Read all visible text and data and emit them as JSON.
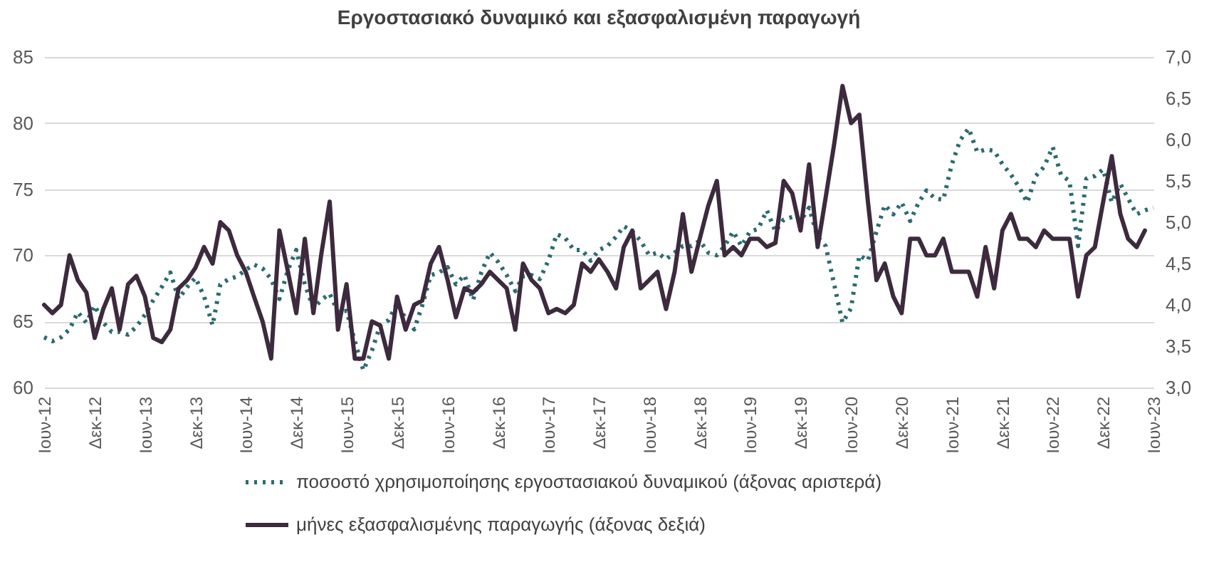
{
  "chart_data": {
    "type": "line",
    "title": "Εργοστασιακό δυναμικό και εξασφαλισμένη παραγωγή",
    "x": [
      "2012-06",
      "2012-07",
      "2012-08",
      "2012-09",
      "2012-10",
      "2012-11",
      "2012-12",
      "2013-01",
      "2013-02",
      "2013-03",
      "2013-04",
      "2013-05",
      "2013-06",
      "2013-07",
      "2013-08",
      "2013-09",
      "2013-10",
      "2013-11",
      "2013-12",
      "2014-01",
      "2014-02",
      "2014-03",
      "2014-04",
      "2014-05",
      "2014-06",
      "2014-07",
      "2014-08",
      "2014-09",
      "2014-10",
      "2014-11",
      "2014-12",
      "2015-01",
      "2015-02",
      "2015-03",
      "2015-04",
      "2015-05",
      "2015-06",
      "2015-07",
      "2015-08",
      "2015-09",
      "2015-10",
      "2015-11",
      "2015-12",
      "2016-01",
      "2016-02",
      "2016-03",
      "2016-04",
      "2016-05",
      "2016-06",
      "2016-07",
      "2016-08",
      "2016-09",
      "2016-10",
      "2016-11",
      "2016-12",
      "2017-01",
      "2017-02",
      "2017-03",
      "2017-04",
      "2017-05",
      "2017-06",
      "2017-07",
      "2017-08",
      "2017-09",
      "2017-10",
      "2017-11",
      "2017-12",
      "2018-01",
      "2018-02",
      "2018-03",
      "2018-04",
      "2018-05",
      "2018-06",
      "2018-07",
      "2018-08",
      "2018-09",
      "2018-10",
      "2018-11",
      "2018-12",
      "2019-01",
      "2019-02",
      "2019-03",
      "2019-04",
      "2019-05",
      "2019-06",
      "2019-07",
      "2019-08",
      "2019-09",
      "2019-10",
      "2019-11",
      "2019-12",
      "2020-01",
      "2020-02",
      "2020-03",
      "2020-04",
      "2020-05",
      "2020-06",
      "2020-07",
      "2020-08",
      "2020-09",
      "2020-10",
      "2020-11",
      "2020-12",
      "2021-01",
      "2021-02",
      "2021-03",
      "2021-04",
      "2021-05",
      "2021-06",
      "2021-07",
      "2021-08",
      "2021-09",
      "2021-10",
      "2021-11",
      "2021-12",
      "2022-01",
      "2022-02",
      "2022-03",
      "2022-04",
      "2022-05",
      "2022-06",
      "2022-07",
      "2022-08",
      "2022-09",
      "2022-10",
      "2022-11",
      "2022-12",
      "2023-01",
      "2023-02",
      "2023-03",
      "2023-04",
      "2023-05",
      "2023-06"
    ],
    "series": [
      {
        "name": "ποσοστό χρησιμοποίησης εργοστασιακού δυναμικού  (άξονας αριστερά)",
        "color": "#2b6b70",
        "line_style": "dotted",
        "values": [
          63.8,
          63.5,
          63.8,
          64.4,
          65.7,
          64.9,
          66.2,
          64.9,
          64.2,
          64.2,
          64.0,
          64.6,
          65.5,
          66.6,
          67.6,
          68.7,
          66.7,
          67.6,
          68.3,
          66.9,
          64.7,
          67.8,
          68.2,
          68.4,
          68.9,
          69.3,
          69.0,
          68.2,
          66.7,
          68.9,
          70.4,
          67.8,
          66.0,
          66.6,
          67.1,
          65.7,
          65.8,
          63.5,
          61.3,
          62.8,
          64.7,
          65.1,
          66.4,
          65.2,
          64.4,
          66.2,
          68.5,
          68.7,
          69.1,
          67.8,
          68.5,
          66.6,
          68.7,
          70.2,
          69.5,
          68.5,
          67.3,
          68.4,
          68.5,
          68.2,
          69.6,
          71.6,
          71.3,
          70.4,
          70.4,
          69.6,
          70.4,
          70.7,
          71.4,
          72.2,
          71.8,
          71.1,
          70.0,
          70.2,
          69.7,
          70.2,
          70.7,
          70.7,
          71.1,
          70.2,
          70.0,
          70.7,
          71.8,
          70.7,
          71.8,
          72.0,
          73.4,
          71.8,
          72.7,
          72.9,
          72.6,
          73.6,
          71.4,
          70.7,
          67.8,
          64.9,
          66.0,
          70.0,
          69.6,
          71.8,
          73.8,
          73.1,
          74.0,
          72.6,
          74.0,
          74.9,
          74.3,
          74.2,
          76.9,
          78.7,
          79.6,
          77.8,
          78.0,
          77.9,
          76.9,
          76.1,
          75.1,
          74.0,
          76.0,
          76.7,
          78.2,
          76.1,
          75.6,
          70.7,
          75.8,
          76.0,
          76.5,
          74.0,
          75.4,
          74.3,
          73.1,
          73.4,
          73.6
        ]
      },
      {
        "name": "μήνες εξασφαλισμένης παραγωγής (άξονας δεξιά)",
        "color": "#3d2a3e",
        "line_style": "solid",
        "axis": "y2",
        "values": [
          4.0,
          3.9,
          4.0,
          4.6,
          4.3,
          4.15,
          3.6,
          3.95,
          4.2,
          3.7,
          4.25,
          4.35,
          4.1,
          3.6,
          3.55,
          3.7,
          4.2,
          4.3,
          4.45,
          4.7,
          4.5,
          5.0,
          4.9,
          4.6,
          4.4,
          4.1,
          3.8,
          3.35,
          4.9,
          4.4,
          3.9,
          4.8,
          3.9,
          4.6,
          5.25,
          3.7,
          4.25,
          3.35,
          3.35,
          3.8,
          3.75,
          3.35,
          4.1,
          3.7,
          4.0,
          4.05,
          4.5,
          4.7,
          4.3,
          3.85,
          4.2,
          4.15,
          4.25,
          4.4,
          4.3,
          4.2,
          3.7,
          4.5,
          4.3,
          4.2,
          3.9,
          3.95,
          3.9,
          4.0,
          4.5,
          4.4,
          4.55,
          4.4,
          4.2,
          4.7,
          4.9,
          4.2,
          4.3,
          4.4,
          3.95,
          4.4,
          5.1,
          4.4,
          4.8,
          5.2,
          5.5,
          4.6,
          4.7,
          4.6,
          4.8,
          4.8,
          4.7,
          4.75,
          5.5,
          5.35,
          4.9,
          5.7,
          4.7,
          5.3,
          5.95,
          6.65,
          6.2,
          6.3,
          5.25,
          4.3,
          4.5,
          4.1,
          3.9,
          4.8,
          4.8,
          4.6,
          4.6,
          4.8,
          4.4,
          4.4,
          4.4,
          4.1,
          4.7,
          4.2,
          4.9,
          5.1,
          4.8,
          4.8,
          4.7,
          4.9,
          4.8,
          4.8,
          4.8,
          4.1,
          4.6,
          4.7,
          5.25,
          5.8,
          5.1,
          4.8,
          4.7,
          4.9,
          null
        ]
      }
    ],
    "xlim": [
      "2012-06",
      "2023-06"
    ],
    "xticks": [
      {
        "value": "2012-06",
        "label": "Ιουν-12"
      },
      {
        "value": "2012-12",
        "label": "Δεκ-12"
      },
      {
        "value": "2013-06",
        "label": "Ιουν-13"
      },
      {
        "value": "2013-12",
        "label": "Δεκ-13"
      },
      {
        "value": "2014-06",
        "label": "Ιουν-14"
      },
      {
        "value": "2014-12",
        "label": "Δεκ-14"
      },
      {
        "value": "2015-06",
        "label": "Ιουν-15"
      },
      {
        "value": "2015-12",
        "label": "Δεκ-15"
      },
      {
        "value": "2016-06",
        "label": "Ιουν-16"
      },
      {
        "value": "2016-12",
        "label": "Δεκ-16"
      },
      {
        "value": "2017-06",
        "label": "Ιουν-17"
      },
      {
        "value": "2017-12",
        "label": "Δεκ-17"
      },
      {
        "value": "2018-06",
        "label": "Ιουν-18"
      },
      {
        "value": "2018-12",
        "label": "Δεκ-18"
      },
      {
        "value": "2019-06",
        "label": "Ιουν-19"
      },
      {
        "value": "2019-12",
        "label": "Δεκ-19"
      },
      {
        "value": "2020-06",
        "label": "Ιουν-20"
      },
      {
        "value": "2020-12",
        "label": "Δεκ-20"
      },
      {
        "value": "2021-06",
        "label": "Ιουν-21"
      },
      {
        "value": "2021-12",
        "label": "Δεκ-21"
      },
      {
        "value": "2022-06",
        "label": "Ιουν-22"
      },
      {
        "value": "2022-12",
        "label": "Δεκ-22"
      },
      {
        "value": "2023-06",
        "label": "Ιουν-23"
      }
    ],
    "ylim": [
      60,
      85
    ],
    "yticks": [
      60,
      65,
      70,
      75,
      80,
      85
    ],
    "y2lim": [
      3,
      7
    ],
    "y2ticks": [
      {
        "value": 3,
        "label": "3,0"
      },
      {
        "value": 3.5,
        "label": "3,5"
      },
      {
        "value": 4,
        "label": "4,0"
      },
      {
        "value": 4.5,
        "label": "4,5"
      },
      {
        "value": 5,
        "label": "5,0"
      },
      {
        "value": 5.5,
        "label": "5,5"
      },
      {
        "value": 6,
        "label": "6,0"
      },
      {
        "value": 6.5,
        "label": "6,5"
      },
      {
        "value": 7,
        "label": "7,0"
      }
    ],
    "grid": "y",
    "legend": "bottom",
    "marker": "none"
  }
}
